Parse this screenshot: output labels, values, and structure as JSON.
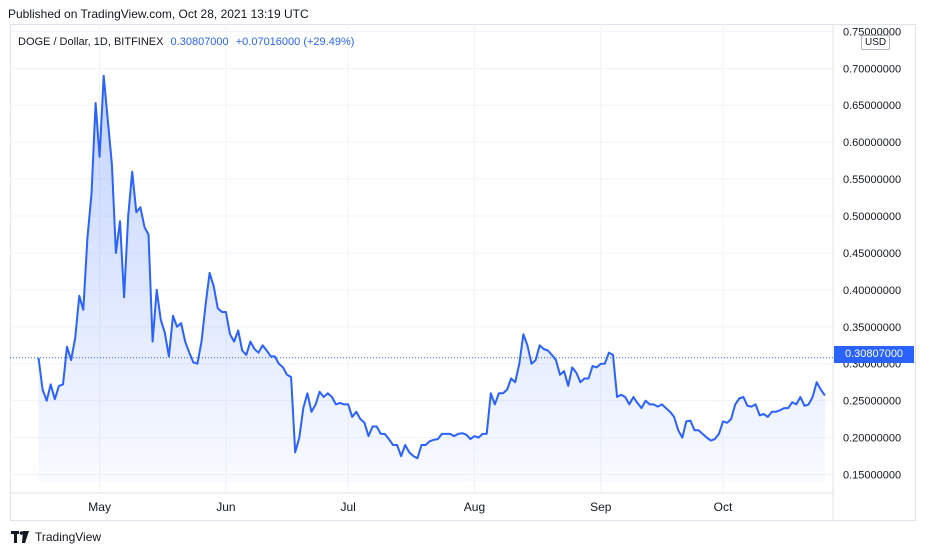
{
  "published": "Published on TradingView.com, Oct 28, 2021 13:19 UTC",
  "legend": {
    "symbol": "DOGE / Dollar, 1D, BITFINEX",
    "last": "0.30807000",
    "change": "+0.07016000 (+29.49%)"
  },
  "currency": "USD",
  "footer": {
    "brand": "TradingView",
    "logo_icon": "tradingview-logo-icon"
  },
  "colors": {
    "line": "#2962ff",
    "area_top": "#2962ff",
    "grid": "#f0f3fa",
    "axis_text": "#131722"
  },
  "chart_data": {
    "type": "area",
    "x_unit": "date",
    "y_label_format": "8 decimals",
    "ylim": [
      0.125,
      0.76
    ],
    "xlim": [
      "2021-04-09",
      "2021-10-28"
    ],
    "y_ticks": [
      0.15,
      0.2,
      0.25,
      0.3,
      0.35,
      0.4,
      0.45,
      0.5,
      0.55,
      0.6,
      0.65,
      0.7,
      0.75
    ],
    "x_ticks": [
      {
        "label": "May",
        "date": "2021-05-01"
      },
      {
        "label": "Jun",
        "date": "2021-06-01"
      },
      {
        "label": "Jul",
        "date": "2021-07-01"
      },
      {
        "label": "Aug",
        "date": "2021-08-01"
      },
      {
        "label": "Sep",
        "date": "2021-09-01"
      },
      {
        "label": "Oct",
        "date": "2021-10-01"
      }
    ],
    "grid": true,
    "last_price_line": 0.30807,
    "last_price_label": "0.30807000",
    "series": [
      {
        "points": [
          [
            "2021-04-16",
            0.308
          ],
          [
            "2021-04-17",
            0.265
          ],
          [
            "2021-04-18",
            0.25
          ],
          [
            "2021-04-19",
            0.272
          ],
          [
            "2021-04-20",
            0.252
          ],
          [
            "2021-04-21",
            0.27
          ],
          [
            "2021-04-22",
            0.272
          ],
          [
            "2021-04-23",
            0.323
          ],
          [
            "2021-04-24",
            0.305
          ],
          [
            "2021-04-25",
            0.335
          ],
          [
            "2021-04-26",
            0.392
          ],
          [
            "2021-04-27",
            0.373
          ],
          [
            "2021-04-28",
            0.47
          ],
          [
            "2021-04-29",
            0.53
          ],
          [
            "2021-04-30",
            0.653
          ],
          [
            "2021-05-01",
            0.58
          ],
          [
            "2021-05-02",
            0.69
          ],
          [
            "2021-05-03",
            0.63
          ],
          [
            "2021-05-04",
            0.57
          ],
          [
            "2021-05-05",
            0.45
          ],
          [
            "2021-05-06",
            0.493
          ],
          [
            "2021-05-07",
            0.39
          ],
          [
            "2021-05-08",
            0.5
          ],
          [
            "2021-05-09",
            0.56
          ],
          [
            "2021-05-10",
            0.505
          ],
          [
            "2021-05-11",
            0.512
          ],
          [
            "2021-05-12",
            0.485
          ],
          [
            "2021-05-13",
            0.475
          ],
          [
            "2021-05-14",
            0.33
          ],
          [
            "2021-05-15",
            0.4
          ],
          [
            "2021-05-16",
            0.36
          ],
          [
            "2021-05-17",
            0.342
          ],
          [
            "2021-05-18",
            0.31
          ],
          [
            "2021-05-19",
            0.365
          ],
          [
            "2021-05-20",
            0.35
          ],
          [
            "2021-05-21",
            0.355
          ],
          [
            "2021-05-22",
            0.33
          ],
          [
            "2021-05-23",
            0.315
          ],
          [
            "2021-05-24",
            0.302
          ],
          [
            "2021-05-25",
            0.3
          ],
          [
            "2021-05-26",
            0.33
          ],
          [
            "2021-05-27",
            0.38
          ],
          [
            "2021-05-28",
            0.423
          ],
          [
            "2021-05-29",
            0.405
          ],
          [
            "2021-05-30",
            0.375
          ],
          [
            "2021-05-31",
            0.37
          ],
          [
            "2021-06-01",
            0.37
          ],
          [
            "2021-06-02",
            0.34
          ],
          [
            "2021-06-03",
            0.33
          ],
          [
            "2021-06-04",
            0.345
          ],
          [
            "2021-06-05",
            0.318
          ],
          [
            "2021-06-06",
            0.312
          ],
          [
            "2021-06-07",
            0.33
          ],
          [
            "2021-06-08",
            0.32
          ],
          [
            "2021-06-09",
            0.315
          ],
          [
            "2021-06-10",
            0.325
          ],
          [
            "2021-06-11",
            0.318
          ],
          [
            "2021-06-12",
            0.31
          ],
          [
            "2021-06-13",
            0.31
          ],
          [
            "2021-06-14",
            0.3
          ],
          [
            "2021-06-15",
            0.295
          ],
          [
            "2021-06-16",
            0.285
          ],
          [
            "2021-06-17",
            0.282
          ],
          [
            "2021-06-18",
            0.18
          ],
          [
            "2021-06-19",
            0.2
          ],
          [
            "2021-06-20",
            0.24
          ],
          [
            "2021-06-21",
            0.26
          ],
          [
            "2021-06-22",
            0.235
          ],
          [
            "2021-06-23",
            0.245
          ],
          [
            "2021-06-24",
            0.262
          ],
          [
            "2021-06-25",
            0.255
          ],
          [
            "2021-06-26",
            0.26
          ],
          [
            "2021-06-27",
            0.255
          ],
          [
            "2021-06-28",
            0.245
          ],
          [
            "2021-06-29",
            0.247
          ],
          [
            "2021-06-30",
            0.245
          ],
          [
            "2021-07-01",
            0.245
          ],
          [
            "2021-07-02",
            0.228
          ],
          [
            "2021-07-03",
            0.235
          ],
          [
            "2021-07-04",
            0.225
          ],
          [
            "2021-07-05",
            0.22
          ],
          [
            "2021-07-06",
            0.202
          ],
          [
            "2021-07-07",
            0.215
          ],
          [
            "2021-07-08",
            0.215
          ],
          [
            "2021-07-09",
            0.205
          ],
          [
            "2021-07-10",
            0.205
          ],
          [
            "2021-07-11",
            0.198
          ],
          [
            "2021-07-12",
            0.19
          ],
          [
            "2021-07-13",
            0.19
          ],
          [
            "2021-07-14",
            0.175
          ],
          [
            "2021-07-15",
            0.19
          ],
          [
            "2021-07-16",
            0.18
          ],
          [
            "2021-07-17",
            0.175
          ],
          [
            "2021-07-18",
            0.172
          ],
          [
            "2021-07-19",
            0.19
          ],
          [
            "2021-07-20",
            0.19
          ],
          [
            "2021-07-21",
            0.195
          ],
          [
            "2021-07-22",
            0.197
          ],
          [
            "2021-07-23",
            0.198
          ],
          [
            "2021-07-24",
            0.205
          ],
          [
            "2021-07-25",
            0.205
          ],
          [
            "2021-07-26",
            0.205
          ],
          [
            "2021-07-27",
            0.202
          ],
          [
            "2021-07-28",
            0.205
          ],
          [
            "2021-07-29",
            0.206
          ],
          [
            "2021-07-30",
            0.204
          ],
          [
            "2021-07-31",
            0.198
          ],
          [
            "2021-08-01",
            0.202
          ],
          [
            "2021-08-02",
            0.2
          ],
          [
            "2021-08-03",
            0.205
          ],
          [
            "2021-08-04",
            0.205
          ],
          [
            "2021-08-05",
            0.26
          ],
          [
            "2021-08-06",
            0.245
          ],
          [
            "2021-08-07",
            0.26
          ],
          [
            "2021-08-08",
            0.26
          ],
          [
            "2021-08-09",
            0.265
          ],
          [
            "2021-08-10",
            0.28
          ],
          [
            "2021-08-11",
            0.275
          ],
          [
            "2021-08-12",
            0.3
          ],
          [
            "2021-08-13",
            0.34
          ],
          [
            "2021-08-14",
            0.325
          ],
          [
            "2021-08-15",
            0.3
          ],
          [
            "2021-08-16",
            0.305
          ],
          [
            "2021-08-17",
            0.325
          ],
          [
            "2021-08-18",
            0.32
          ],
          [
            "2021-08-19",
            0.318
          ],
          [
            "2021-08-20",
            0.312
          ],
          [
            "2021-08-21",
            0.305
          ],
          [
            "2021-08-22",
            0.285
          ],
          [
            "2021-08-23",
            0.29
          ],
          [
            "2021-08-24",
            0.27
          ],
          [
            "2021-08-25",
            0.295
          ],
          [
            "2021-08-26",
            0.288
          ],
          [
            "2021-08-27",
            0.275
          ],
          [
            "2021-08-28",
            0.28
          ],
          [
            "2021-08-29",
            0.28
          ],
          [
            "2021-08-30",
            0.297
          ],
          [
            "2021-08-31",
            0.295
          ],
          [
            "2021-09-01",
            0.3
          ],
          [
            "2021-09-02",
            0.3
          ],
          [
            "2021-09-03",
            0.315
          ],
          [
            "2021-09-04",
            0.312
          ],
          [
            "2021-09-05",
            0.255
          ],
          [
            "2021-09-06",
            0.258
          ],
          [
            "2021-09-07",
            0.255
          ],
          [
            "2021-09-08",
            0.245
          ],
          [
            "2021-09-09",
            0.255
          ],
          [
            "2021-09-10",
            0.247
          ],
          [
            "2021-09-11",
            0.24
          ],
          [
            "2021-09-12",
            0.25
          ],
          [
            "2021-09-13",
            0.245
          ],
          [
            "2021-09-14",
            0.245
          ],
          [
            "2021-09-15",
            0.242
          ],
          [
            "2021-09-16",
            0.245
          ],
          [
            "2021-09-17",
            0.24
          ],
          [
            "2021-09-18",
            0.235
          ],
          [
            "2021-09-19",
            0.228
          ],
          [
            "2021-09-20",
            0.21
          ],
          [
            "2021-09-21",
            0.2
          ],
          [
            "2021-09-22",
            0.222
          ],
          [
            "2021-09-23",
            0.223
          ],
          [
            "2021-09-24",
            0.21
          ],
          [
            "2021-09-25",
            0.21
          ],
          [
            "2021-09-26",
            0.205
          ],
          [
            "2021-09-27",
            0.2
          ],
          [
            "2021-09-28",
            0.196
          ],
          [
            "2021-09-29",
            0.198
          ],
          [
            "2021-09-30",
            0.205
          ],
          [
            "2021-10-01",
            0.222
          ],
          [
            "2021-10-02",
            0.22
          ],
          [
            "2021-10-03",
            0.225
          ],
          [
            "2021-10-04",
            0.245
          ],
          [
            "2021-10-05",
            0.253
          ],
          [
            "2021-10-06",
            0.255
          ],
          [
            "2021-10-07",
            0.243
          ],
          [
            "2021-10-08",
            0.242
          ],
          [
            "2021-10-09",
            0.245
          ],
          [
            "2021-10-10",
            0.23
          ],
          [
            "2021-10-11",
            0.232
          ],
          [
            "2021-10-12",
            0.228
          ],
          [
            "2021-10-13",
            0.235
          ],
          [
            "2021-10-14",
            0.235
          ],
          [
            "2021-10-15",
            0.237
          ],
          [
            "2021-10-16",
            0.24
          ],
          [
            "2021-10-17",
            0.24
          ],
          [
            "2021-10-18",
            0.248
          ],
          [
            "2021-10-19",
            0.245
          ],
          [
            "2021-10-20",
            0.255
          ],
          [
            "2021-10-21",
            0.243
          ],
          [
            "2021-10-22",
            0.245
          ],
          [
            "2021-10-23",
            0.255
          ],
          [
            "2021-10-24",
            0.275
          ],
          [
            "2021-10-25",
            0.265
          ],
          [
            "2021-10-26",
            0.257
          ]
        ]
      }
    ]
  }
}
